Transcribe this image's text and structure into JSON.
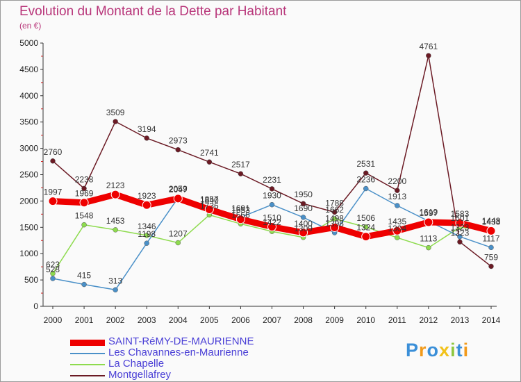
{
  "title": "Evolution du Montant de la Dette par Habitant",
  "subtitle": "(en €)",
  "chart_data": {
    "type": "line",
    "x": [
      "2000",
      "2001",
      "2002",
      "2003",
      "2004",
      "2005",
      "2006",
      "2007",
      "2008",
      "2009",
      "2010",
      "2011",
      "2012",
      "2013",
      "2014"
    ],
    "yticks": [
      0,
      500,
      1000,
      1500,
      2000,
      2500,
      3000,
      3500,
      4000,
      4500,
      5000
    ],
    "ylim": [
      0,
      5000
    ],
    "grid": false,
    "legend_position": "bottom-left",
    "series": [
      {
        "name": "SAINT-RéMY-DE-MAURIENNE",
        "color": "#ee0000",
        "values": [
          1997,
          1969,
          2123,
          1923,
          2047,
          1840,
          1653,
          1510,
          1400,
          1498,
          1324,
          1435,
          1597,
          1583,
          1433
        ]
      },
      {
        "name": "Les Chavannes-en-Maurienne",
        "color": "#4a90c8",
        "values": [
          528,
          415,
          313,
          1198,
          2059,
          1857,
          1691,
          1930,
          1690,
          1398,
          2236,
          1913,
          1619,
          1323,
          1117
        ]
      },
      {
        "name": "La Chapelle",
        "color": "#8edb4e",
        "values": [
          623,
          1548,
          1453,
          1346,
          1207,
          1736,
          1566,
          1422,
          1309,
          1662,
          1506,
          1304,
          1113,
          1501,
          1448
        ]
      },
      {
        "name": "Montgellafrey",
        "color": "#6b1a24",
        "values": [
          2760,
          2238,
          3509,
          3194,
          2973,
          2741,
          2517,
          2231,
          1950,
          1788,
          2531,
          2200,
          4761,
          1223,
          759
        ]
      }
    ]
  },
  "logo": {
    "text": "Proxiti",
    "colors": [
      "#3a8fd8",
      "#f29a1a",
      "#3a8fd8",
      "#f2c21a",
      "#8ec63f",
      "#3a8fd8",
      "#f29a1a"
    ]
  }
}
